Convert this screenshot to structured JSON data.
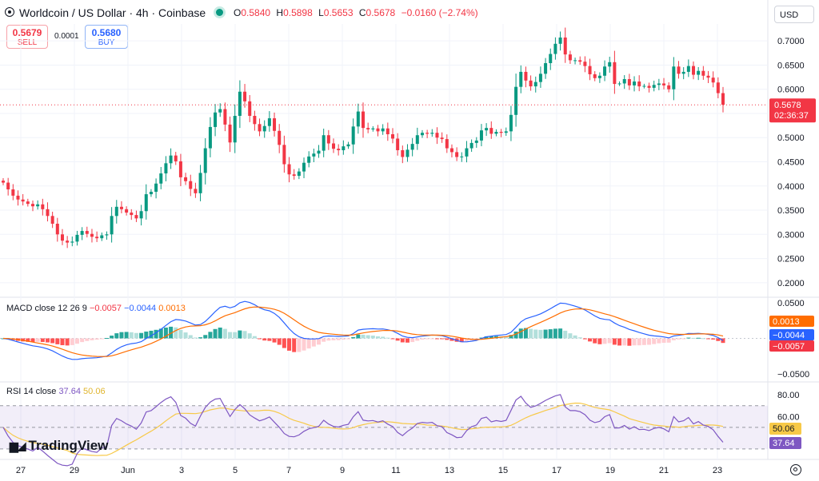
{
  "header": {
    "title": "Worldcoin / US Dollar · 4h · Coinbase",
    "ohlc": [
      {
        "k": "O",
        "v": "0.5840"
      },
      {
        "k": "H",
        "v": "0.5898"
      },
      {
        "k": "L",
        "v": "0.5653"
      },
      {
        "k": "C",
        "v": "0.5678"
      },
      {
        "k": "",
        "v": "−0.0160 (−2.74%)"
      }
    ],
    "currency": "USD"
  },
  "trade": {
    "sell_price": "0.5679",
    "sell_label": "SELL",
    "spread": "0.0001",
    "buy_price": "0.5680",
    "buy_label": "BUY"
  },
  "colors": {
    "up": "#089981",
    "down": "#f23645",
    "macd": "#2962ff",
    "signal": "#ff6d00",
    "rsi": "#7e57c2",
    "rsi_ma": "#f7c948"
  },
  "chart_data": [
    {
      "type": "candlestick",
      "title": "Worldcoin / US Dollar · 4h · Coinbase",
      "y_ticks": [
        "0.7000",
        "0.6500",
        "0.6000",
        "0.5500",
        "0.5000",
        "0.4500",
        "0.4000",
        "0.3500",
        "0.3000",
        "0.2500",
        "0.2000"
      ],
      "ylim": [
        0.17,
        0.735
      ],
      "x_ticks": [
        "27",
        "29",
        "Jun",
        "3",
        "5",
        "7",
        "9",
        "11",
        "13",
        "15",
        "17",
        "19",
        "21",
        "23"
      ],
      "last_price": "0.5678",
      "countdown": "02:36:37",
      "close": [
        0.407,
        0.393,
        0.38,
        0.372,
        0.368,
        0.363,
        0.358,
        0.362,
        0.352,
        0.338,
        0.322,
        0.3,
        0.287,
        0.283,
        0.285,
        0.299,
        0.307,
        0.301,
        0.295,
        0.292,
        0.298,
        0.3,
        0.338,
        0.357,
        0.352,
        0.345,
        0.34,
        0.333,
        0.348,
        0.383,
        0.388,
        0.405,
        0.426,
        0.447,
        0.463,
        0.451,
        0.418,
        0.41,
        0.394,
        0.385,
        0.427,
        0.478,
        0.522,
        0.552,
        0.559,
        0.527,
        0.49,
        0.545,
        0.595,
        0.575,
        0.545,
        0.528,
        0.513,
        0.524,
        0.54,
        0.514,
        0.485,
        0.445,
        0.424,
        0.421,
        0.43,
        0.448,
        0.461,
        0.467,
        0.473,
        0.505,
        0.488,
        0.477,
        0.474,
        0.482,
        0.486,
        0.523,
        0.554,
        0.52,
        0.517,
        0.519,
        0.513,
        0.519,
        0.507,
        0.498,
        0.474,
        0.46,
        0.475,
        0.487,
        0.505,
        0.51,
        0.508,
        0.51,
        0.5,
        0.497,
        0.478,
        0.47,
        0.46,
        0.461,
        0.478,
        0.489,
        0.494,
        0.515,
        0.52,
        0.508,
        0.512,
        0.51,
        0.513,
        0.547,
        0.605,
        0.636,
        0.618,
        0.606,
        0.615,
        0.632,
        0.654,
        0.673,
        0.694,
        0.707,
        0.672,
        0.66,
        0.66,
        0.657,
        0.648,
        0.631,
        0.623,
        0.628,
        0.647,
        0.656,
        0.611,
        0.612,
        0.621,
        0.608,
        0.616,
        0.606,
        0.607,
        0.603,
        0.609,
        0.612,
        0.608,
        0.6,
        0.647,
        0.632,
        0.636,
        0.648,
        0.63,
        0.638,
        0.628,
        0.624,
        0.614,
        0.592,
        0.568
      ]
    },
    {
      "type": "macd",
      "legend": "MACD close 12 26 9",
      "values": [
        "−0.0057",
        "−0.0044",
        "0.0013"
      ],
      "y_ticks": [
        "0.0500",
        "0.0000",
        "−0.0500"
      ],
      "ylim": [
        -0.058,
        0.058
      ],
      "tags": [
        "0.0013",
        "−0.0044",
        "−0.0057"
      ]
    },
    {
      "type": "rsi",
      "legend": "RSI 14 close",
      "values": [
        "37.64",
        "50.06"
      ],
      "y_ticks": [
        "80.00",
        "60.00"
      ],
      "ylim": [
        24,
        92
      ],
      "band": [
        30,
        70
      ],
      "tags": [
        "50.06",
        "37.64"
      ]
    }
  ],
  "watermark": "TradingView"
}
